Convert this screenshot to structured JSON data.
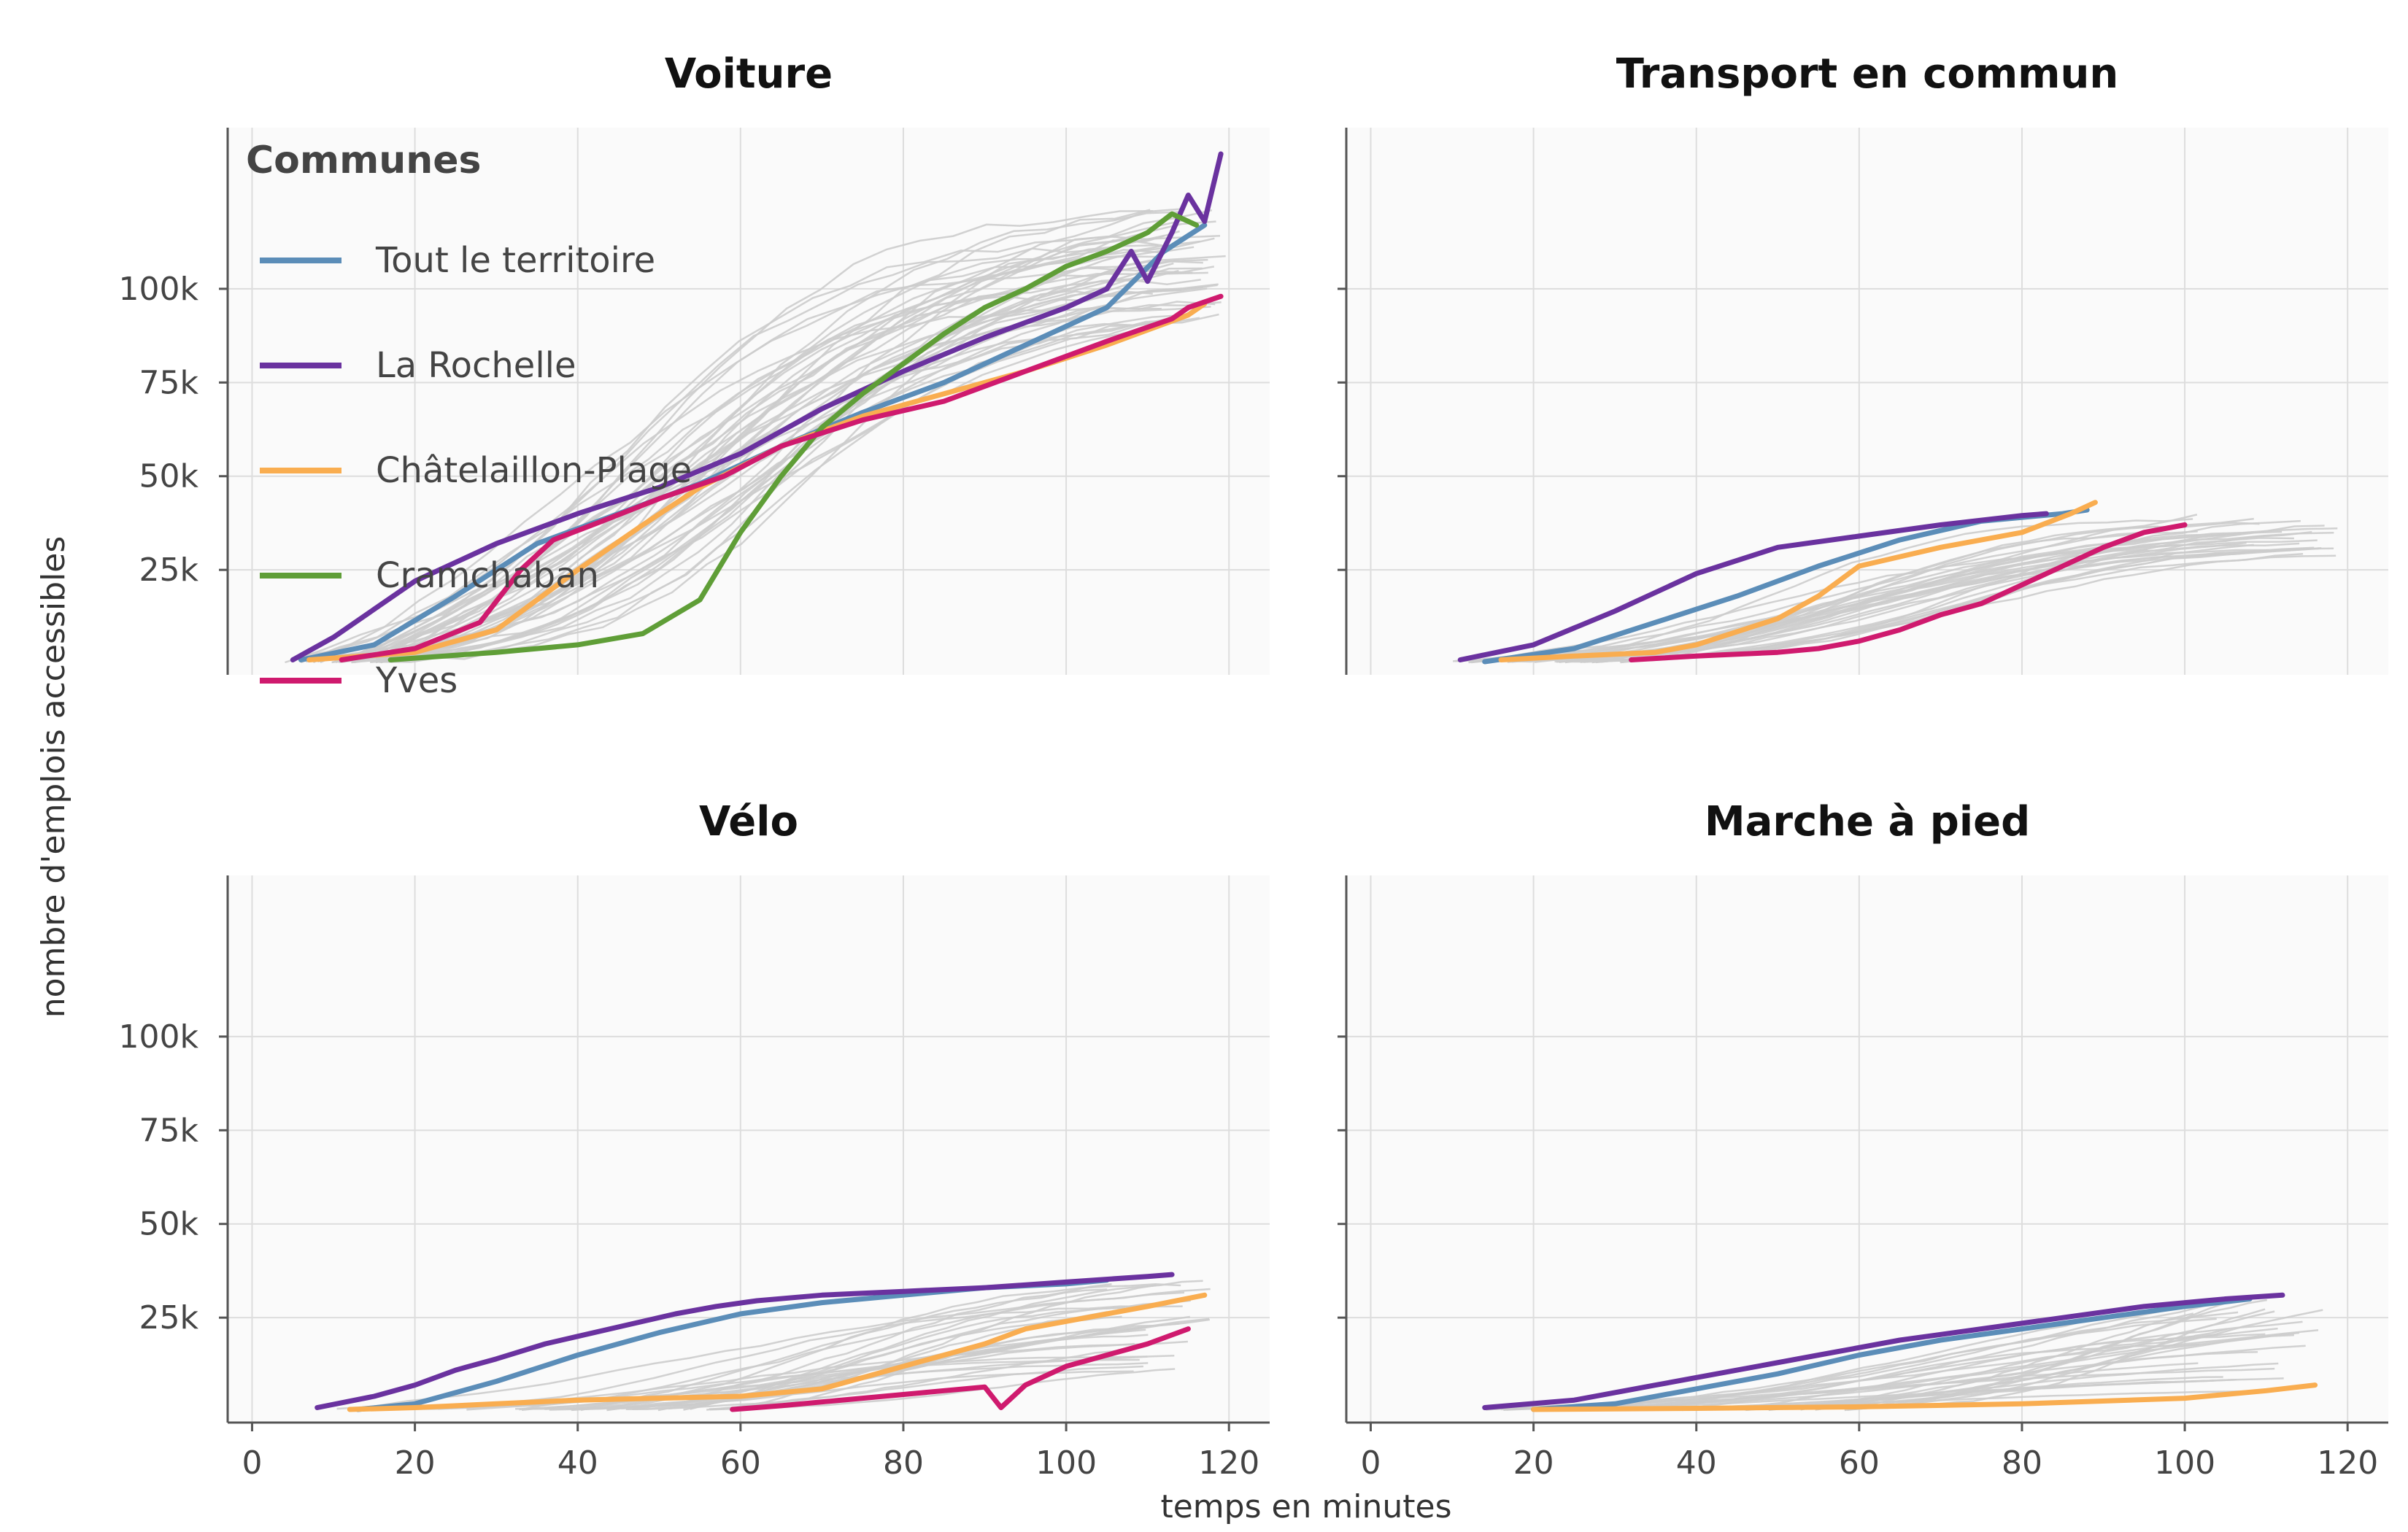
{
  "chart_data": {
    "type": "line",
    "xlabel": "temps en minutes",
    "ylabel": "nombre d'emplois accessibles",
    "xlim": [
      -3,
      125
    ],
    "ylim": [
      -3000,
      143000
    ],
    "x_ticks": [
      0,
      20,
      40,
      60,
      80,
      100,
      120
    ],
    "x_tick_labels": [
      "0",
      "20",
      "40",
      "60",
      "80",
      "100",
      "120"
    ],
    "y_ticks": [
      25000,
      50000,
      75000,
      100000
    ],
    "y_tick_labels": [
      "25k",
      "50k",
      "75k",
      "100k"
    ],
    "grid": true,
    "legend": {
      "title": "Communes",
      "position": "top-left",
      "entries": [
        "Tout le territoire",
        "La Rochelle",
        "Châtelaillon-Plage",
        "Cramchaban",
        "Yves"
      ]
    },
    "colors": {
      "Tout le territoire": "#5b8db8",
      "La Rochelle": "#6a329f",
      "Châtelaillon-Plage": "#f9ad50",
      "Cramchaban": "#5f9e37",
      "Yves": "#cf1a6e",
      "background": "#cccccc"
    },
    "panels": [
      {
        "title": "Voiture",
        "series": [
          {
            "name": "Tout le territoire",
            "x": [
              6,
              15,
              25,
              35,
              45,
              55,
              65,
              75,
              85,
              95,
              105,
              112,
              117
            ],
            "y": [
              1000,
              5000,
              18000,
              32000,
              40000,
              48000,
              58000,
              67000,
              75000,
              85000,
              95000,
              110000,
              117000
            ]
          },
          {
            "name": "La Rochelle",
            "x": [
              5,
              10,
              20,
              30,
              40,
              50,
              60,
              70,
              80,
              90,
              100,
              105,
              108,
              110,
              113,
              115,
              117,
              119
            ],
            "y": [
              1000,
              7000,
              22000,
              32000,
              40000,
              47000,
              56000,
              68000,
              78000,
              87000,
              95000,
              100000,
              110000,
              102000,
              115000,
              125000,
              118000,
              136000
            ]
          },
          {
            "name": "Châtelaillon-Plage",
            "x": [
              7,
              20,
              30,
              40,
              48,
              55,
              65,
              75,
              85,
              95,
              105,
              110,
              115,
              117
            ],
            "y": [
              1000,
              3000,
              9000,
              25000,
              37000,
              47000,
              58000,
              66000,
              72000,
              78000,
              85000,
              89000,
              93000,
              96000
            ]
          },
          {
            "name": "Cramchaban",
            "x": [
              17,
              30,
              40,
              48,
              55,
              60,
              65,
              70,
              75,
              80,
              85,
              90,
              95,
              100,
              105,
              110,
              113,
              116
            ],
            "y": [
              1000,
              3000,
              5000,
              8000,
              17000,
              35000,
              50000,
              63000,
              72000,
              80000,
              88000,
              95000,
              100000,
              106000,
              110000,
              115000,
              120000,
              117000
            ]
          },
          {
            "name": "Yves",
            "x": [
              11,
              20,
              28,
              33,
              37,
              43,
              50,
              58,
              65,
              75,
              85,
              95,
              105,
              113,
              115,
              119
            ],
            "y": [
              1000,
              4000,
              11000,
              25000,
              33000,
              38000,
              44000,
              50000,
              58000,
              65000,
              70000,
              78000,
              86000,
              92000,
              95000,
              98000
            ]
          }
        ]
      },
      {
        "title": "Transport en commun",
        "series": [
          {
            "name": "Tout le territoire",
            "x": [
              14,
              25,
              35,
              45,
              55,
              65,
              75,
              85,
              88
            ],
            "y": [
              500,
              4000,
              11000,
              18000,
              26000,
              33000,
              38000,
              40000,
              41000
            ]
          },
          {
            "name": "La Rochelle",
            "x": [
              11,
              20,
              30,
              40,
              50,
              60,
              70,
              80,
              83
            ],
            "y": [
              1000,
              5000,
              14000,
              24000,
              31000,
              34000,
              37000,
              39500,
              40000
            ]
          },
          {
            "name": "Châtelaillon-Plage",
            "x": [
              16,
              25,
              35,
              40,
              50,
              55,
              60,
              70,
              80,
              86,
              89
            ],
            "y": [
              1000,
              2000,
              3000,
              5000,
              12000,
              18000,
              26000,
              31000,
              35000,
              40000,
              43000
            ]
          },
          {
            "name": "Yves",
            "x": [
              32,
              40,
              50,
              55,
              60,
              65,
              70,
              75,
              80,
              85,
              90,
              95,
              100
            ],
            "y": [
              1000,
              2000,
              3000,
              4000,
              6000,
              9000,
              13000,
              16000,
              21000,
              26000,
              31000,
              35000,
              37000
            ]
          }
        ]
      },
      {
        "title": "Vélo",
        "series": [
          {
            "name": "Tout le territoire",
            "x": [
              13,
              20,
              30,
              40,
              50,
              60,
              70,
              80,
              90,
              100,
              105
            ],
            "y": [
              500,
              2000,
              8000,
              15000,
              21000,
              26000,
              29000,
              31000,
              33000,
              34000,
              35000
            ]
          },
          {
            "name": "La Rochelle",
            "x": [
              8,
              15,
              20,
              25,
              30,
              36,
              40,
              46,
              52,
              57,
              62,
              70,
              80,
              90,
              100,
              110,
              113
            ],
            "y": [
              1000,
              4000,
              7000,
              11000,
              14000,
              18000,
              20000,
              23000,
              26000,
              28000,
              29500,
              31000,
              32000,
              33000,
              34500,
              36000,
              36500
            ]
          },
          {
            "name": "Châtelaillon-Plage",
            "x": [
              12,
              20,
              30,
              40,
              50,
              60,
              70,
              75,
              80,
              85,
              90,
              95,
              100,
              105,
              110,
              117
            ],
            "y": [
              500,
              1000,
              2000,
              3000,
              3500,
              4000,
              6000,
              9000,
              12000,
              15000,
              18000,
              22000,
              24000,
              26000,
              28000,
              31000
            ]
          },
          {
            "name": "Yves",
            "x": [
              59,
              65,
              70,
              75,
              80,
              85,
              90,
              92,
              95,
              100,
              105,
              110,
              115
            ],
            "y": [
              500,
              1500,
              2500,
              3500,
              4500,
              5500,
              6500,
              1000,
              7000,
              12000,
              15000,
              18000,
              22000
            ]
          }
        ]
      },
      {
        "title": "Marche à pied",
        "series": [
          {
            "name": "Tout le territoire",
            "x": [
              20,
              30,
              40,
              50,
              60,
              70,
              80,
              90,
              100,
              108
            ],
            "y": [
              500,
              2000,
              6000,
              10000,
              15000,
              19000,
              22000,
              25000,
              28000,
              30000
            ]
          },
          {
            "name": "La Rochelle",
            "x": [
              14,
              25,
              35,
              45,
              55,
              65,
              75,
              85,
              95,
              105,
              112
            ],
            "y": [
              1000,
              3000,
              7000,
              11000,
              15000,
              19000,
              22000,
              25000,
              28000,
              30000,
              31000
            ]
          },
          {
            "name": "Châtelaillon-Plage",
            "x": [
              20,
              40,
              60,
              80,
              100,
              110,
              116
            ],
            "y": [
              500,
              800,
              1200,
              2000,
              3500,
              5500,
              7000
            ]
          }
        ]
      }
    ]
  }
}
